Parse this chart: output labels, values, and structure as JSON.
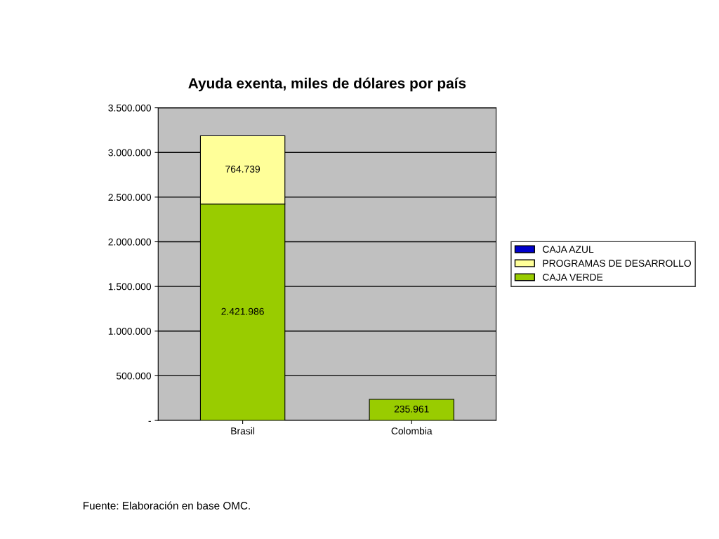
{
  "chart_data": {
    "type": "bar",
    "title": "Ayuda exenta, miles de dólares por país",
    "categories": [
      "Brasil",
      "Colombia"
    ],
    "stacked": true,
    "series": [
      {
        "name": "CAJA VERDE",
        "color": "#99cc00",
        "values": [
          2421986,
          235961
        ],
        "value_labels": [
          "2.421.986",
          "235.961"
        ]
      },
      {
        "name": "PROGRAMAS DE DESARROLLO",
        "color": "#ffff99",
        "values": [
          764739,
          null
        ],
        "value_labels": [
          "764.739",
          null
        ]
      },
      {
        "name": "CAJA AZUL",
        "color": "#0000cc",
        "values": [
          null,
          null
        ]
      }
    ],
    "ylim": [
      0,
      3500000
    ],
    "yticks": [
      {
        "value": 0,
        "label": "-"
      },
      {
        "value": 500000,
        "label": "500.000"
      },
      {
        "value": 1000000,
        "label": "1.000.000"
      },
      {
        "value": 1500000,
        "label": "1.500.000"
      },
      {
        "value": 2000000,
        "label": "2.000.000"
      },
      {
        "value": 2500000,
        "label": "2.500.000"
      },
      {
        "value": 3000000,
        "label": "3.000.000"
      },
      {
        "value": 3500000,
        "label": "3.500.000"
      }
    ],
    "grid": "y",
    "legend": "right",
    "annotations": [
      "Fuente: Elaboración en base OMC."
    ]
  }
}
